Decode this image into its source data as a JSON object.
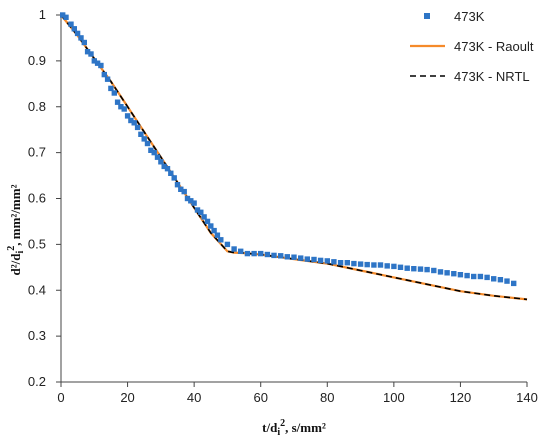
{
  "chart_data": {
    "type": "scatter",
    "xlabel": "t/d",
    "xlabel_sub": "i",
    "xlabel_sup": "2",
    "xlabel_rest": ", s/mm²",
    "ylabel": "d²/d",
    "ylabel_sub": "i",
    "ylabel_sup": "2",
    "ylabel_rest": ", mm²/mm²",
    "xlim": [
      0,
      140
    ],
    "ylim": [
      0.2,
      1.0
    ],
    "xticks": [
      "0",
      "20",
      "40",
      "60",
      "80",
      "100",
      "120",
      "140"
    ],
    "yticks": [
      "0.2",
      "0.3",
      "0.4",
      "0.5",
      "0.6",
      "0.7",
      "0.8",
      "0.9",
      "1"
    ],
    "grid": false,
    "legend_position": "top-right",
    "colors": {
      "points": "#2e75c6",
      "raoult": "#f58a2a",
      "nrtl": "#000000"
    },
    "series": [
      {
        "name": "473K",
        "kind": "scatter",
        "x": [
          0.5,
          1.5,
          3,
          4,
          5,
          6,
          7,
          8,
          9,
          10,
          11,
          12,
          13,
          14,
          15,
          16,
          17,
          18,
          19,
          20,
          21,
          22,
          23,
          24,
          25,
          26,
          27,
          28,
          29,
          30,
          31,
          32,
          33,
          34,
          35,
          36,
          37,
          38,
          39,
          40,
          41,
          42,
          43,
          44,
          45,
          46,
          47,
          48,
          50,
          52,
          54,
          56,
          58,
          60,
          62,
          64,
          66,
          68,
          70,
          72,
          74,
          76,
          78,
          80,
          82,
          84,
          86,
          88,
          90,
          92,
          94,
          96,
          98,
          100,
          102,
          104,
          106,
          108,
          110,
          112,
          114,
          116,
          118,
          120,
          122,
          124,
          126,
          128,
          130,
          132,
          134,
          136
        ],
        "y": [
          1.0,
          0.995,
          0.98,
          0.97,
          0.96,
          0.95,
          0.94,
          0.92,
          0.915,
          0.9,
          0.895,
          0.89,
          0.87,
          0.86,
          0.84,
          0.83,
          0.81,
          0.8,
          0.795,
          0.78,
          0.77,
          0.765,
          0.755,
          0.74,
          0.73,
          0.72,
          0.705,
          0.7,
          0.69,
          0.68,
          0.67,
          0.665,
          0.655,
          0.645,
          0.63,
          0.62,
          0.615,
          0.6,
          0.595,
          0.59,
          0.575,
          0.57,
          0.56,
          0.55,
          0.54,
          0.53,
          0.52,
          0.51,
          0.5,
          0.49,
          0.485,
          0.48,
          0.48,
          0.48,
          0.478,
          0.476,
          0.475,
          0.473,
          0.472,
          0.47,
          0.468,
          0.467,
          0.465,
          0.464,
          0.462,
          0.46,
          0.46,
          0.458,
          0.457,
          0.456,
          0.455,
          0.455,
          0.453,
          0.452,
          0.45,
          0.448,
          0.447,
          0.446,
          0.445,
          0.443,
          0.44,
          0.438,
          0.436,
          0.434,
          0.432,
          0.43,
          0.43,
          0.428,
          0.425,
          0.423,
          0.42,
          0.415
        ]
      },
      {
        "name": "473K - Raoult",
        "kind": "line",
        "x": [
          0,
          5,
          10,
          15,
          20,
          25,
          30,
          35,
          40,
          45,
          50,
          52,
          55,
          60,
          70,
          80,
          90,
          100,
          110,
          120,
          130,
          140
        ],
        "y": [
          1.0,
          0.955,
          0.905,
          0.855,
          0.8,
          0.745,
          0.69,
          0.635,
          0.58,
          0.525,
          0.485,
          0.482,
          0.481,
          0.478,
          0.468,
          0.458,
          0.443,
          0.428,
          0.413,
          0.398,
          0.388,
          0.38
        ]
      },
      {
        "name": "473K - NRTL",
        "kind": "dashed-line",
        "x": [
          0,
          5,
          10,
          15,
          20,
          25,
          30,
          35,
          40,
          45,
          50,
          52,
          55,
          60,
          70,
          80,
          90,
          100,
          110,
          120,
          130,
          140
        ],
        "y": [
          1.0,
          0.955,
          0.905,
          0.855,
          0.8,
          0.745,
          0.69,
          0.635,
          0.58,
          0.525,
          0.485,
          0.482,
          0.481,
          0.478,
          0.468,
          0.458,
          0.443,
          0.428,
          0.413,
          0.398,
          0.388,
          0.38
        ]
      }
    ]
  }
}
